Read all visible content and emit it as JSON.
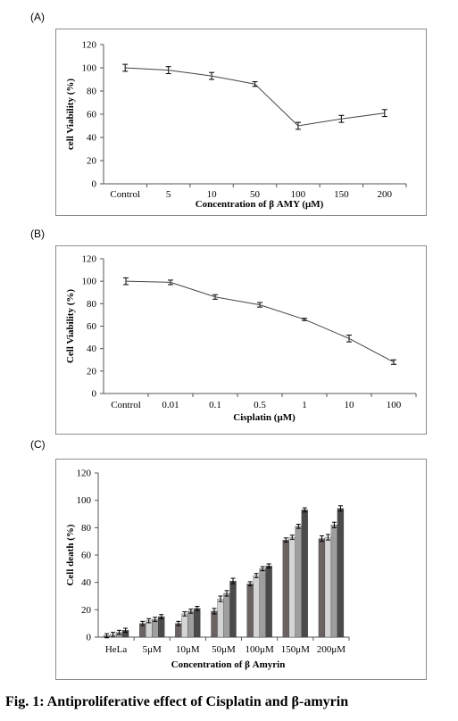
{
  "caption": "Fig. 1: Antiproliferative effect of Cisplatin and β-amyrin",
  "chart_data": [
    {
      "panel": "(A)",
      "type": "line",
      "categories": [
        "Control",
        "5",
        "10",
        "50",
        "100",
        "150",
        "200"
      ],
      "values": [
        100,
        98,
        93,
        86,
        50,
        56,
        61
      ],
      "errors": [
        3,
        3,
        3,
        2,
        3,
        3,
        3
      ],
      "xlabel": "Concentration of β AMY (μM)",
      "ylabel": "cell Viability (%)",
      "ylim": [
        0,
        120
      ],
      "yticks": [
        0,
        20,
        40,
        60,
        80,
        100,
        120
      ],
      "grid": false
    },
    {
      "panel": "(B)",
      "type": "line",
      "categories": [
        "Control",
        "0.01",
        "0.1",
        "0.5",
        "1",
        "10",
        "100"
      ],
      "values": [
        100,
        99,
        86,
        79,
        66,
        49,
        28
      ],
      "errors": [
        3,
        2,
        2,
        2,
        1,
        3,
        2
      ],
      "xlabel": "Cisplatin (μM)",
      "ylabel": "Cell Viability (%)",
      "ylim": [
        0,
        120
      ],
      "yticks": [
        0,
        20,
        40,
        60,
        80,
        100,
        120
      ],
      "grid": false
    },
    {
      "panel": "(C)",
      "type": "bar",
      "categories": [
        "HeLa",
        "5μM",
        "10μM",
        "50μM",
        "100μM",
        "150μM",
        "200μM"
      ],
      "series": [
        {
          "color": "#6b6262",
          "values": [
            1,
            10,
            10,
            19,
            39,
            71,
            72
          ]
        },
        {
          "color": "#d4d4d4",
          "values": [
            2,
            12,
            17,
            28,
            45,
            73,
            73
          ]
        },
        {
          "color": "#9e9e9e",
          "values": [
            3.5,
            13,
            19,
            32,
            50,
            81,
            82
          ]
        },
        {
          "color": "#4a4a4a",
          "values": [
            5,
            15,
            21,
            41,
            52,
            93,
            94
          ]
        }
      ],
      "errors": [
        1.5,
        1.5,
        1.5,
        2,
        1.5,
        1.5,
        2
      ],
      "xlabel": "Concentration  of β Amyrin",
      "ylabel": "Cell  death  (%)",
      "ylim": [
        0,
        120
      ],
      "yticks": [
        0,
        20,
        40,
        60,
        80,
        100,
        120
      ],
      "grid": false
    }
  ]
}
